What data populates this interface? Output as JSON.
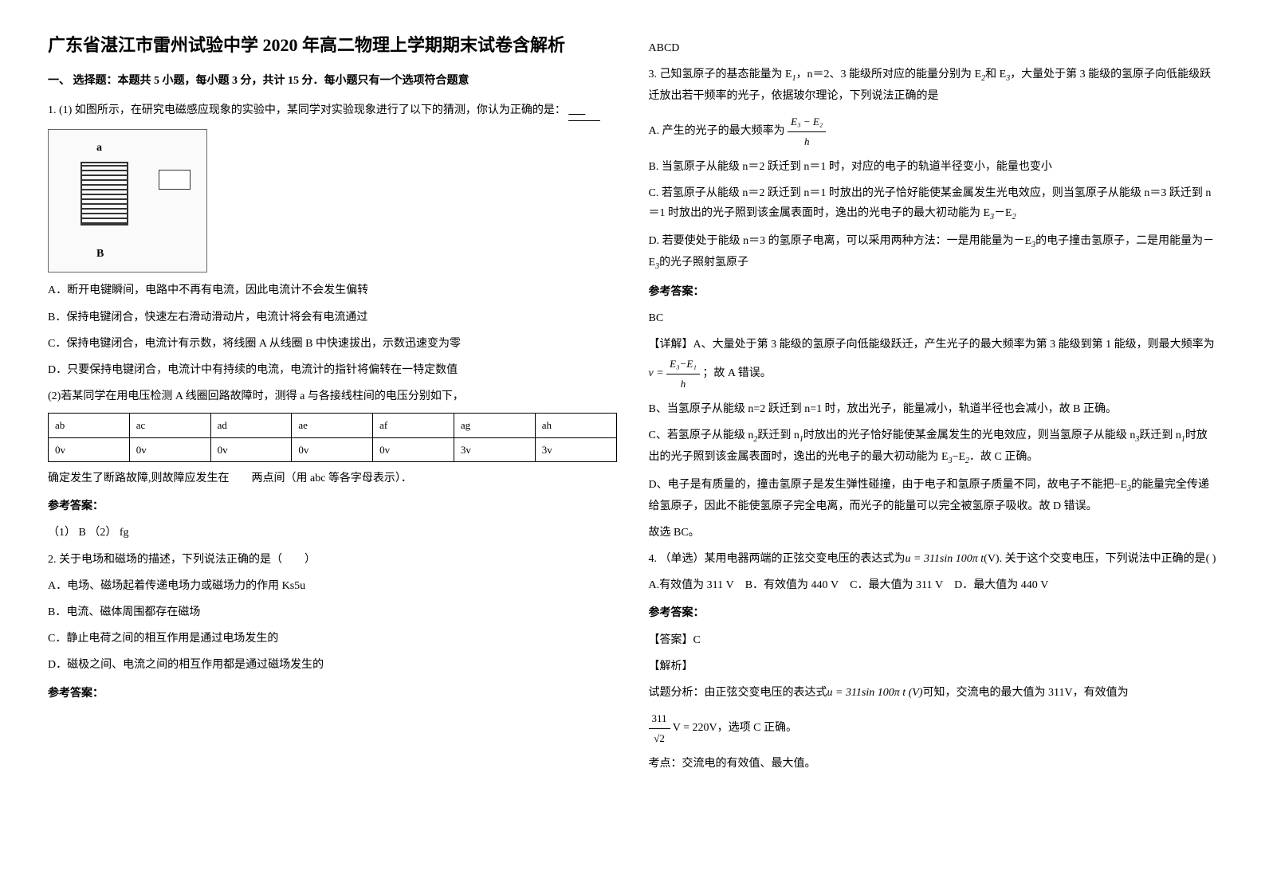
{
  "left": {
    "title": "广东省湛江市雷州试验中学 2020 年高二物理上学期期末试卷含解析",
    "section1_heading": "一、 选择题：本题共 5 小题，每小题 3 分，共计 15 分．每小题只有一个选项符合题意",
    "q1_intro": "1. (1) 如图所示，在研究电磁感应现象的实验中，某同学对实验现象进行了以下的猜测，你认为正确的是：",
    "q1_optA": "A．断开电键瞬间，电路中不再有电流，因此电流计不会发生偏转",
    "q1_optB": "B．保持电键闭合，快速左右滑动滑动片，电流计将会有电流通过",
    "q1_optC": "C．保持电键闭合，电流计有示数，将线圈 A 从线圈 B 中快速拔出，示数迅速变为零",
    "q1_optD": "D．只要保持电键闭合，电流计中有持续的电流，电流计的指针将偏转在一特定数值",
    "q1_part2": "(2)若某同学在用电压检测 A 线圈回路故障时，测得 a 与各接线柱间的电压分别如下，",
    "table_headers": [
      "ab",
      "ac",
      "ad",
      "ae",
      "af",
      "ag",
      "ah"
    ],
    "table_values": [
      "0v",
      "0v",
      "0v",
      "0v",
      "0v",
      "3v",
      "3v"
    ],
    "q1_conclusion": "确定发生了断路故障,则故障应发生在　　两点间（用 abc 等各字母表示）．",
    "q1_answer_label": "参考答案：",
    "q1_answer": "（1）  B  （2）   fg",
    "q2_intro": "2. 关于电场和磁场的描述，下列说法正确的是（　　）",
    "q2_optA": "A．电场、磁场起着传递电场力或磁场力的作用 Ks5u",
    "q2_optB": "B．电流、磁体周围都存在磁场",
    "q2_optC": "C．静止电荷之间的相互作用是通过电场发生的",
    "q2_optD": "D．磁极之间、电流之间的相互作用都是通过磁场发生的",
    "q2_answer_label": "参考答案："
  },
  "right": {
    "q2_answer": "ABCD",
    "q3_intro_1": "3. 己知氢原子的基态能量为 E",
    "q3_intro_2": "，n＝2、3 能级所对应的能量分别为 E",
    "q3_intro_3": "和 E",
    "q3_intro_4": "，大量处于第 3 能级的氢原子向低能级跃迁放出若干频率的光子，依据玻尔理论，下列说法正确的是",
    "q3_optA_pre": "A.  产生的光子的最大频率为",
    "q3_frac_num": "E₃ − E₂",
    "q3_frac_den": "h",
    "q3_optB": "B.  当氢原子从能级 n＝2 跃迁到 n＝1 时，对应的电子的轨道半径变小，能量也变小",
    "q3_optC_1": "C.  若氢原子从能级 n＝2 跃迁到 n＝1 时放出的光子恰好能使某金属发生光电效应，则当氢原子从能级 n＝3 跃迁到 n＝1 时放出的光子照到该金属表面时，逸出的光电子的最大初动能为 E",
    "q3_optC_2": "－E",
    "q3_optD_1": "D.  若要使处于能级 n＝3 的氢原子电离，可以采用两种方法：一是用能量为－E",
    "q3_optD_2": "的电子撞击氢原子，二是用能量为－E",
    "q3_optD_3": "的光子照射氢原子",
    "q3_answer_label": "参考答案：",
    "q3_answer": "BC",
    "q3_detail_label": "【详解】",
    "q3_detailA_1": "A、大量处于第 3 能级的氢原子向低能级跃迁，产生光子的最大频率为第 3 能级到第 1 能级，则最大频率为",
    "q3_detailA_frac_num": "E₃−E₁",
    "q3_detailA_frac_den": "h",
    "q3_detailA_2": "；故 A 错误。",
    "q3_detailB": "B、当氢原子从能级 n=2 跃迁到 n=1 时，放出光子，能量减小，轨道半径也会减小，故 B 正确。",
    "q3_detailC_1": "C、若氢原子从能级 n",
    "q3_detailC_2": "跃迁到 n",
    "q3_detailC_3": "时放出的光子恰好能使某金属发生的光电效应，则当氢原子从能级 n",
    "q3_detailC_4": "跃迁到 n",
    "q3_detailC_5": "时放出的光子照到该金属表面时，逸出的光电子的最大初动能为 E",
    "q3_detailC_6": "−E",
    "q3_detailC_7": "．故 C 正确。",
    "q3_detailD_1": "D、电子是有质量的，撞击氢原子是发生弹性碰撞，由于电子和氢原子质量不同，故电子不能把−E",
    "q3_detailD_2": "的能量完全传递给氢原子，因此不能使氢原子完全电离，而光子的能量可以完全被氢原子吸收。故 D 错误。",
    "q3_conclusion": "故选 BC。",
    "q4_intro_1": "4. （单选）某用电器两端的正弦交变电压的表达式为",
    "q4_formula": "u = 311sin 100π t",
    "q4_intro_2": "(V). 关于这个交变电压，下列说法中正确的是(     )",
    "q4_optA": "A.有效值为 311 V",
    "q4_optB": "B．有效值为 440 V",
    "q4_optC": "C．最大值为 311 V",
    "q4_optD": "D．最大值为 440 V",
    "q4_answer_label": "参考答案：",
    "q4_ans": "【答案】C",
    "q4_exp_label": "【解析】",
    "q4_exp_1": "试题分析：由正弦交变电压的表达式",
    "q4_exp_formula": "u = 311sin 100π t (V)",
    "q4_exp_2": "可知，交流电的最大值为 311V，有效值为",
    "q4_exp_frac_num": "311",
    "q4_exp_frac_den": "√2",
    "q4_exp_3": "V = 220V，选项 C 正确。",
    "q4_point": "考点：交流电的有效值、最大值。"
  }
}
